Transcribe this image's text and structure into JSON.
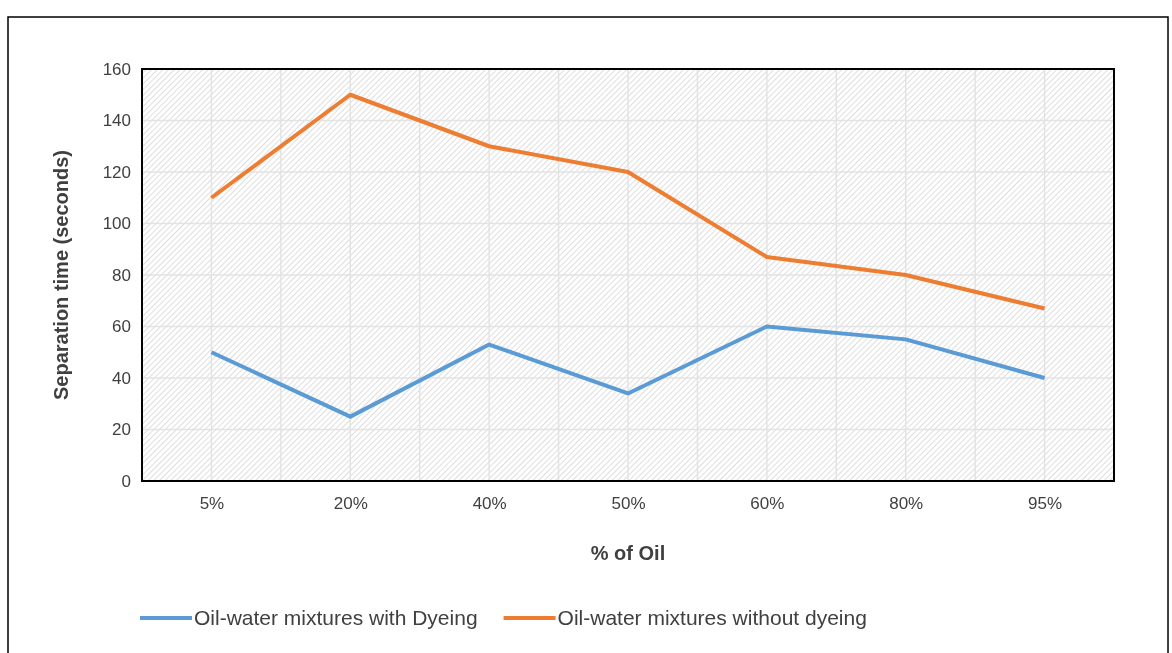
{
  "chart_data": {
    "type": "line",
    "xlabel": "% of Oil",
    "ylabel": "Separation time (seconds)",
    "categories": [
      "5%",
      "20%",
      "40%",
      "50%",
      "60%",
      "80%",
      "95%"
    ],
    "series": [
      {
        "name": "Oil-water mixtures with Dyeing",
        "color": "#5b9bd5",
        "values": [
          50,
          25,
          53,
          34,
          60,
          55,
          40
        ]
      },
      {
        "name": "Oil-water mixtures without dyeing",
        "color": "#ed7d31",
        "values": [
          110,
          150,
          130,
          120,
          87,
          80,
          67
        ]
      }
    ],
    "ylim": [
      0,
      160
    ],
    "yticks": [
      0,
      20,
      40,
      60,
      80,
      100,
      120,
      140,
      160
    ],
    "grid": true,
    "legend": "bottom",
    "marker": "none",
    "line_style": "solid"
  }
}
